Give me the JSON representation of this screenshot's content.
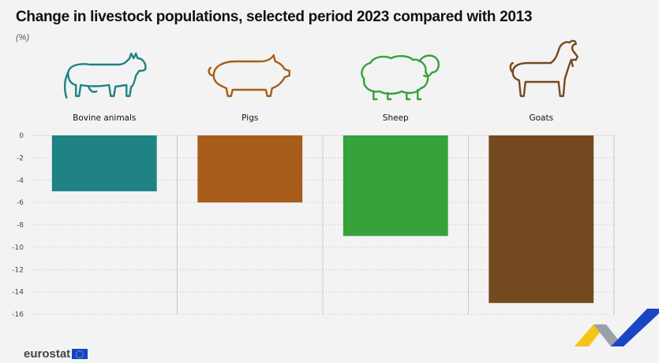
{
  "title": "Change in livestock populations, selected period 2023 compared with 2013",
  "unit": "(%)",
  "branding": {
    "logo_text": "eurostat"
  },
  "chart_data": {
    "type": "bar",
    "categories": [
      "Bovine animals",
      "Pigs",
      "Sheep",
      "Goats"
    ],
    "values": [
      -5,
      -6,
      -9,
      -15
    ],
    "colors": [
      "#1f8284",
      "#a85c19",
      "#35a23a",
      "#734a20"
    ],
    "icons": [
      "cow-icon",
      "pig-icon",
      "sheep-icon",
      "goat-icon"
    ],
    "ylim": [
      -16,
      0
    ],
    "yticks": [
      0,
      -2,
      -4,
      -6,
      -8,
      -10,
      -12,
      -14,
      -16
    ],
    "grid": true
  }
}
